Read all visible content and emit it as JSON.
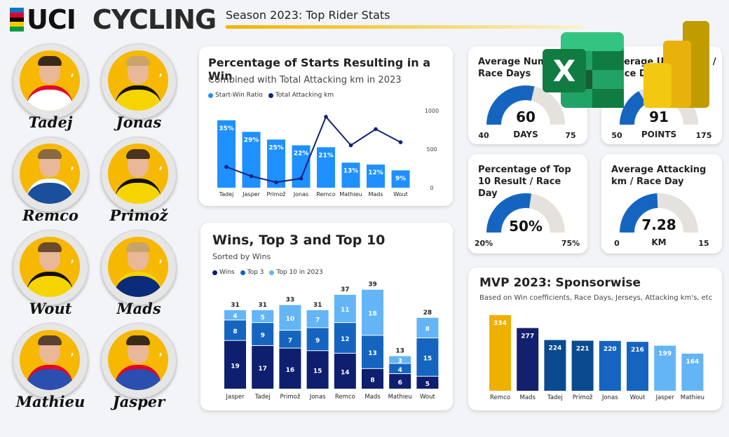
{
  "header": {
    "logo_text": "UCI",
    "brand": "CYCLING",
    "title": "Season 2023: Top Rider Stats"
  },
  "logo_colors": [
    "#0077c8",
    "#e4002b",
    "#000000",
    "#f6c800",
    "#009a44"
  ],
  "riders": [
    {
      "name": "Tadej",
      "jersey": "#ffffff",
      "accent": "#e4002b",
      "hair": "#3a2a1a"
    },
    {
      "name": "Jonas",
      "jersey": "#f6d400",
      "accent": "#111111",
      "hair": "#c9a46a"
    },
    {
      "name": "Remco",
      "jersey": "#1a4f9c",
      "accent": "#ffffff",
      "hair": "#8a6a40"
    },
    {
      "name": "Primož",
      "jersey": "#f6d400",
      "accent": "#111111",
      "hair": "#4a3420"
    },
    {
      "name": "Wout",
      "jersey": "#f6d400",
      "accent": "#111111",
      "hair": "#6a4a2a"
    },
    {
      "name": "Mads",
      "jersey": "#0a2a7a",
      "accent": "#f6d400",
      "hair": "#c9a46a"
    },
    {
      "name": "Mathieu",
      "jersey": "#2a4fb0",
      "accent": "#e4002b",
      "hair": "#5a4030"
    },
    {
      "name": "Jasper",
      "jersey": "#2a4fb0",
      "accent": "#e4002b",
      "hair": "#3a2a1a"
    }
  ],
  "win_card": {
    "title": "Percentage of Starts Resulting in a Win",
    "subtitle": "Combined with Total Attacking km in 2023",
    "legend": [
      "Start-Win Ratio",
      "Total Attacking km"
    ]
  },
  "wins_card": {
    "title": "Wins, Top 3 and Top 10",
    "subtitle": "Sorted by Wins",
    "legend": [
      "Wins",
      "Top 3",
      "Top 10 in 2023"
    ]
  },
  "mvp_card": {
    "title": "MVP 2023: Sponsorwise",
    "subtitle": "Based on Win coefficients, Race Days, Jerseys, Attacking km's, etc"
  },
  "kpis": [
    {
      "title": "Average Number of Race Days",
      "value": "60",
      "unit": "DAYS",
      "min": "40",
      "max": "75",
      "value_num": 60,
      "min_num": 40,
      "max_num": 75
    },
    {
      "title": "Average UCI Points / Race Day",
      "value": "91",
      "unit": "POINTS",
      "min": "50",
      "max": "175",
      "value_num": 91,
      "min_num": 50,
      "max_num": 175
    },
    {
      "title": "Percentage of Top 10 Result / Race Day",
      "value": "50%",
      "unit": "",
      "min": "20%",
      "max": "75%",
      "value_num": 50,
      "min_num": 20,
      "max_num": 75
    },
    {
      "title": "Average Attacking km / Race Day",
      "value": "7.28",
      "unit": "KM",
      "min": "0",
      "max": "15",
      "value_num": 7.28,
      "min_num": 0,
      "max_num": 15
    }
  ],
  "icons": {
    "excel": "excel-app-icon",
    "powerbi": "powerbi-app-icon"
  },
  "colors": {
    "bar_blue": "#1e90ff",
    "line_navy": "#12237a",
    "wins": "#0d1f6e",
    "top3": "#1565c0",
    "top10": "#64b5f6",
    "gauge": "#1565c0",
    "gauge_bg": "#e5e1dc",
    "mvp_gold": "#f0b000"
  },
  "chart_data": [
    {
      "type": "bar",
      "name": "start_win_ratio_with_attacking_km",
      "categories": [
        "Tadej",
        "Jasper",
        "Primož",
        "Jonas",
        "Remco",
        "Mathieu",
        "Mads",
        "Wout"
      ],
      "series": [
        {
          "name": "Start-Win Ratio",
          "values": [
            35,
            29,
            25,
            22,
            21,
            13,
            12,
            9
          ],
          "labels": [
            "35%",
            "29%",
            "25%",
            "22%",
            "21%",
            "13%",
            "12%",
            "9%"
          ],
          "axis": "left",
          "type": "bar"
        },
        {
          "name": "Total Attacking km",
          "values": [
            270,
            150,
            70,
            120,
            920,
            550,
            760,
            590
          ],
          "axis": "right",
          "type": "line"
        }
      ],
      "ylim": [
        0,
        40
      ],
      "y2lim": [
        0,
        1000
      ],
      "y2ticks": [
        "0",
        "500",
        "1000"
      ]
    },
    {
      "type": "bar",
      "name": "wins_top3_top10",
      "stacked": true,
      "categories": [
        "Jasper",
        "Tadej",
        "Primož",
        "Jonas",
        "Remco",
        "Mads",
        "Mathieu",
        "Wout"
      ],
      "series": [
        {
          "name": "Wins",
          "values": [
            19,
            17,
            16,
            15,
            14,
            8,
            6,
            5
          ]
        },
        {
          "name": "Top 3",
          "values": [
            8,
            9,
            7,
            9,
            12,
            13,
            4,
            15
          ]
        },
        {
          "name": "Top 10 in 2023",
          "values": [
            4,
            5,
            10,
            7,
            11,
            18,
            3,
            8
          ]
        }
      ],
      "totals": [
        31,
        31,
        33,
        31,
        37,
        39,
        13,
        28
      ],
      "ylim": [
        0,
        40
      ]
    },
    {
      "type": "bar",
      "name": "mvp_sponsorwise",
      "categories": [
        "Remco",
        "Mads",
        "Tadej",
        "Primož",
        "Jonas",
        "Wout",
        "Jasper",
        "Mathieu"
      ],
      "values": [
        334,
        277,
        224,
        221,
        220,
        216,
        199,
        164
      ],
      "colors": [
        "#f0b000",
        "#13206e",
        "#0a4a8f",
        "#0a4a8f",
        "#1565c0",
        "#1565c0",
        "#64b5f6",
        "#64b5f6"
      ],
      "ylim": [
        0,
        340
      ]
    }
  ]
}
